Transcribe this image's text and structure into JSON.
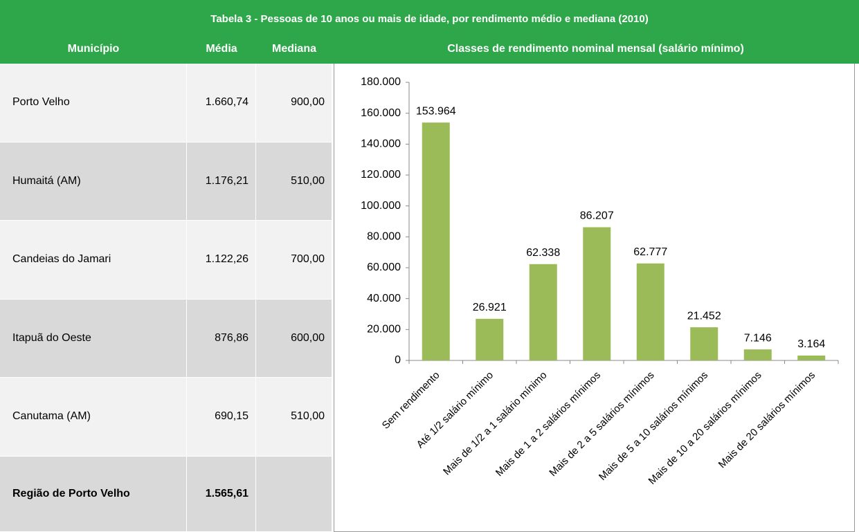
{
  "table": {
    "title": "Tabela 3 - Pessoas de 10 anos ou mais de idade, por rendimento médio e mediana (2010)",
    "headers": [
      "Município",
      "Média",
      "Mediana",
      "Classes de rendimento nominal mensal (salário mínimo)"
    ],
    "rows": [
      [
        "Porto Velho",
        "1.660,74",
        "900,00"
      ],
      [
        "Humaitá (AM)",
        "1.176,21",
        "510,00"
      ],
      [
        "Candeias do Jamari",
        "1.122,26",
        "700,00"
      ],
      [
        "Itapuã do Oeste",
        "876,86",
        "600,00"
      ],
      [
        "Canutama (AM)",
        "690,15",
        "510,00"
      ],
      [
        "Região de Porto Velho",
        "1.565,61"
      ]
    ]
  },
  "chart_data": {
    "type": "bar",
    "categories": [
      "Sem rendimento",
      "Até 1/2 salário mínimo",
      "Mais de 1/2 a 1 salário mínimo",
      "Mais de 1 a 2 salários mínimos",
      "Mais de 2 a 5 salários mínimos",
      "Mais de 5 a 10 salários mínimos",
      "Mais de 10 a 20 salários mínimos",
      "Mais de 20 salários mínimos"
    ],
    "values": [
      153964,
      26921,
      62338,
      86207,
      62777,
      21452,
      7146,
      3164
    ],
    "value_labels": [
      "153.964",
      "26.921",
      "62.338",
      "86.207",
      "62.777",
      "21.452",
      "7.146",
      "3.164"
    ],
    "color": "#9bbb59",
    "ylim": [
      0,
      180000
    ],
    "yticks": [
      0,
      {
        "value": 20000,
        "label": "20.000"
      },
      {
        "value": 40000,
        "label": "40.000"
      },
      {
        "value": 60000,
        "label": "60.000"
      },
      {
        "value": 80000,
        "label": "80.000"
      },
      {
        "value": 100000,
        "label": "100.000"
      },
      {
        "value": 120000,
        "label": "120.000"
      },
      {
        "value": 140000,
        "label": "140.000"
      },
      {
        "value": 160000,
        "label": "160.000"
      },
      {
        "value": 180000,
        "label": "180.000"
      }
    ]
  }
}
